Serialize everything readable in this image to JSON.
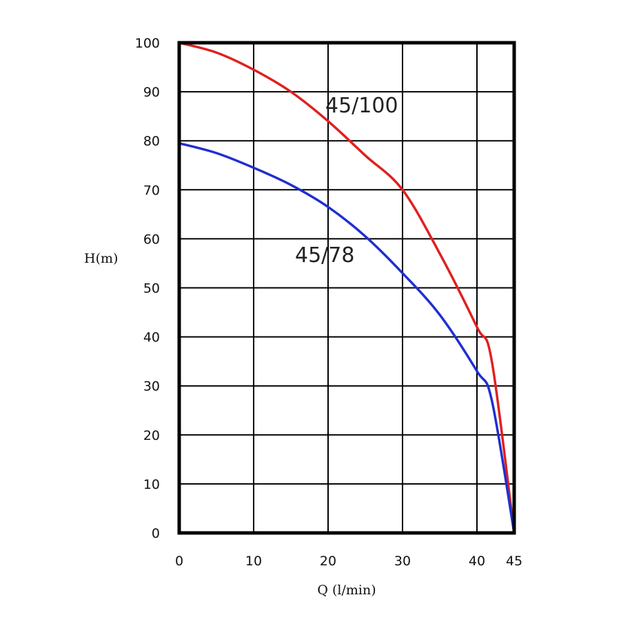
{
  "chart_data": {
    "type": "line",
    "xlabel": "Q (l/min)",
    "ylabel": "H(m)",
    "xlim": [
      0,
      45
    ],
    "ylim": [
      0,
      100
    ],
    "x_ticks": [
      "0",
      "10",
      "20",
      "30",
      "40",
      "45"
    ],
    "y_ticks": [
      "0",
      "10",
      "20",
      "30",
      "40",
      "50",
      "60",
      "70",
      "80",
      "90",
      "100"
    ],
    "grid": true,
    "series": [
      {
        "name": "45/100",
        "color": "#e02020",
        "x": [
          0,
          5,
          10,
          15,
          20,
          25,
          30,
          35,
          40,
          42,
          45
        ],
        "y": [
          100,
          98,
          94.5,
          90,
          84,
          77,
          70,
          57,
          42,
          35,
          0
        ]
      },
      {
        "name": "45/78",
        "color": "#1f2fd0",
        "x": [
          0,
          5,
          10,
          15,
          20,
          25,
          30,
          35,
          40,
          42,
          45
        ],
        "y": [
          79.5,
          77.5,
          74.5,
          71,
          66.5,
          60.5,
          53,
          44.5,
          33,
          27,
          0
        ]
      }
    ]
  }
}
